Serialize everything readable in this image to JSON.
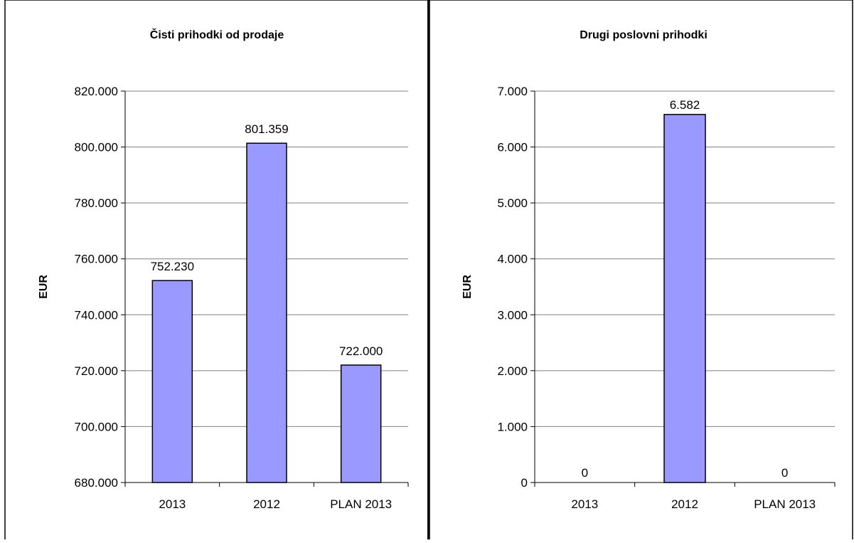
{
  "chart_data": [
    {
      "type": "bar",
      "title": "Čisti prihodki od prodaje",
      "ylabel": "EUR",
      "xlabel": "",
      "categories": [
        "2013",
        "2012",
        "PLAN 2013"
      ],
      "values": [
        752230,
        801359,
        722000
      ],
      "data_labels": [
        "752.230",
        "801.359",
        "722.000"
      ],
      "ylim": [
        680000,
        820000
      ],
      "yticks": [
        680000,
        700000,
        720000,
        740000,
        760000,
        780000,
        800000,
        820000
      ],
      "ytick_labels": [
        "680.000",
        "700.000",
        "720.000",
        "740.000",
        "760.000",
        "780.000",
        "800.000",
        "820.000"
      ],
      "grid": true,
      "legend": "none",
      "bar_color": "#9999ff"
    },
    {
      "type": "bar",
      "title": "Drugi poslovni prihodki",
      "ylabel": "EUR",
      "xlabel": "",
      "categories": [
        "2013",
        "2012",
        "PLAN 2013"
      ],
      "values": [
        0,
        6582,
        0
      ],
      "data_labels": [
        "0",
        "6.582",
        "0"
      ],
      "ylim": [
        0,
        7000
      ],
      "yticks": [
        0,
        1000,
        2000,
        3000,
        4000,
        5000,
        6000,
        7000
      ],
      "ytick_labels": [
        "0",
        "1.000",
        "2.000",
        "3.000",
        "4.000",
        "5.000",
        "6.000",
        "7.000"
      ],
      "grid": true,
      "legend": "none",
      "bar_color": "#9999ff"
    }
  ]
}
